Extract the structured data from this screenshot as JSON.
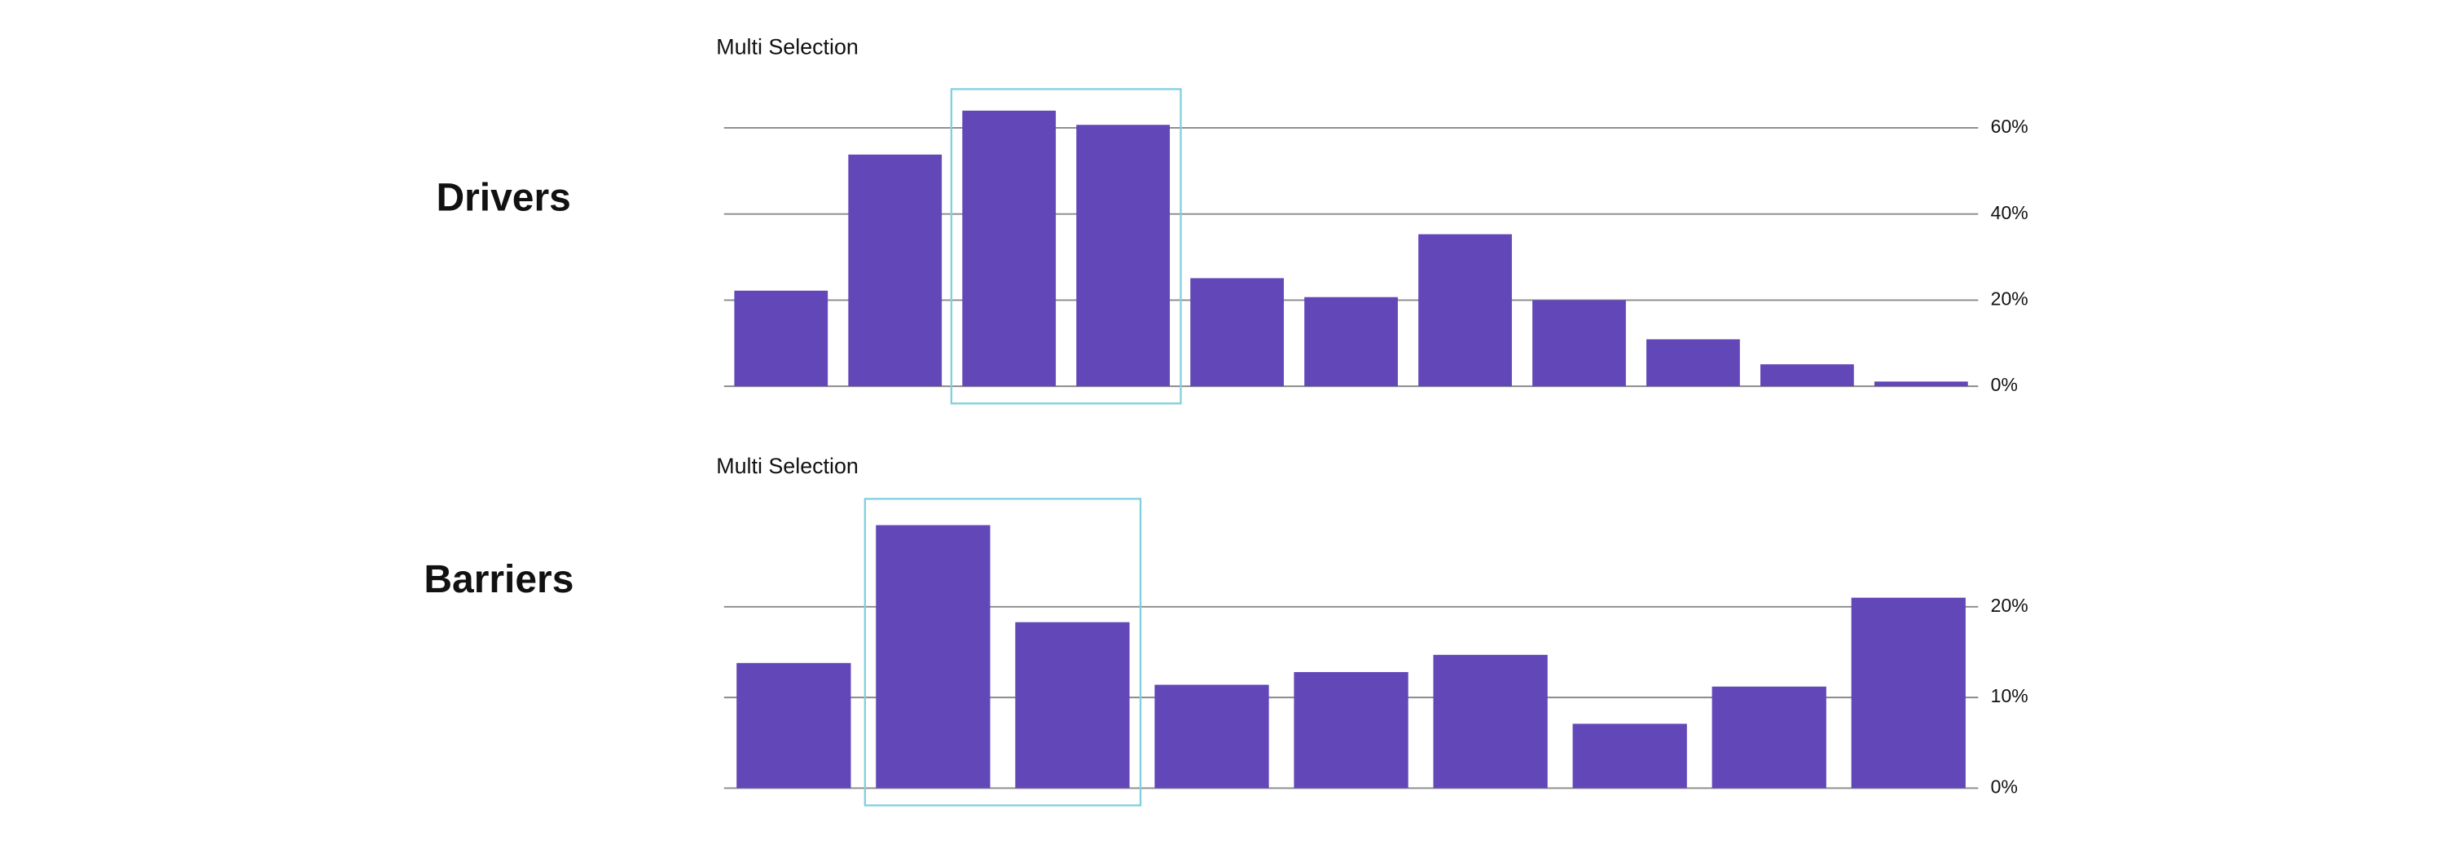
{
  "chart_data": [
    {
      "type": "bar",
      "section": "Drivers",
      "title": "Multi Selection",
      "categories": [
        null,
        null,
        null,
        null,
        null,
        null,
        null,
        null,
        null,
        null,
        null
      ],
      "values": [
        22.2,
        53.8,
        64,
        60.7,
        25.1,
        20.7,
        35.3,
        20,
        10.9,
        5.1,
        1.1
      ],
      "color": "#6247b8",
      "ylim": [
        0,
        65
      ],
      "yticks": [
        {
          "value": 0,
          "label": "0%"
        },
        {
          "value": 20,
          "label": "20%"
        },
        {
          "value": 40,
          "label": "40%"
        },
        {
          "value": 60,
          "label": "60%"
        }
      ],
      "grid": true,
      "selected": [
        2,
        3
      ],
      "selection_color": "#7fd0e0"
    },
    {
      "type": "bar",
      "section": "Barriers",
      "title": "Multi Selection",
      "categories": [
        null,
        null,
        null,
        null,
        null,
        null,
        null,
        null,
        null
      ],
      "values": [
        13.8,
        29,
        18.3,
        11.4,
        12.8,
        14.7,
        7.1,
        11.2,
        21
      ],
      "color": "#6247b8",
      "ylim": [
        0,
        30
      ],
      "yticks": [
        {
          "value": 0,
          "label": "0%"
        },
        {
          "value": 10,
          "label": "10%"
        },
        {
          "value": 20,
          "label": "20%"
        }
      ],
      "grid": true,
      "selected": [
        1,
        2
      ],
      "selection_color": "#7fd0e0"
    }
  ]
}
